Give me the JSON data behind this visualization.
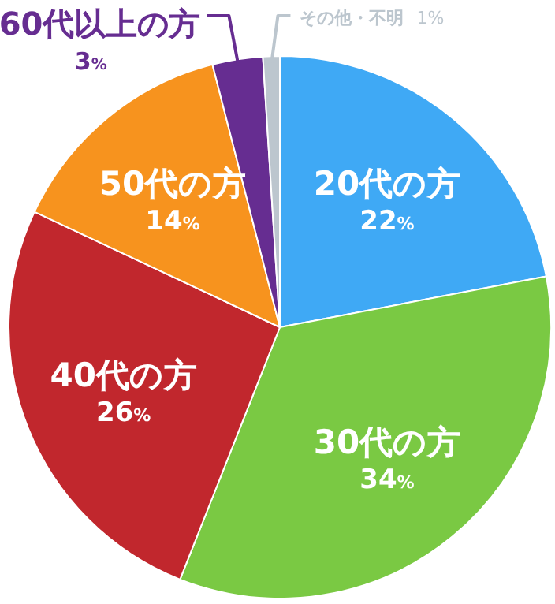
{
  "chart_data": {
    "type": "pie",
    "categories": [
      "20代の方",
      "30代の方",
      "40代の方",
      "50代の方",
      "60代以上の方",
      "その他・不明"
    ],
    "values": [
      22,
      34,
      26,
      14,
      3,
      1
    ],
    "value_labels": [
      "22%",
      "34%",
      "26%",
      "14%",
      "3%",
      "1%"
    ],
    "colors": [
      "#3fa9f5",
      "#7ac943",
      "#c1272d",
      "#f7931e",
      "#662d91",
      "#bcc6ce"
    ],
    "legend": false
  }
}
